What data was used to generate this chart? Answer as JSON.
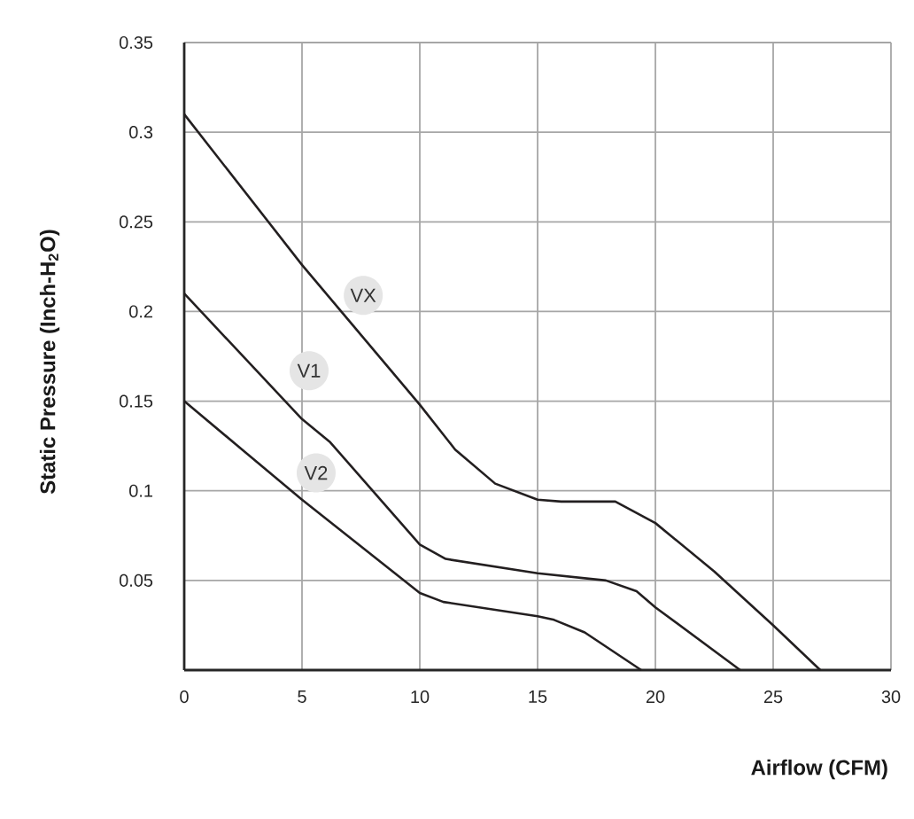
{
  "chart_data": {
    "type": "line",
    "xlabel": "Airflow (CFM)",
    "ylabel": "Static Pressure (Inch-H$_{2}$O)",
    "xlim": [
      0,
      30
    ],
    "xticks": [
      0,
      5,
      10,
      15,
      20,
      25,
      30
    ],
    "ylim": [
      0,
      0.35
    ],
    "yticks": [
      0.05,
      0.1,
      0.15,
      0.2,
      0.25,
      0.3,
      0.35
    ],
    "grid": true,
    "series": [
      {
        "color": "#231f20",
        "x": [
          0,
          5,
          10,
          11.5,
          13.2,
          15,
          16,
          18.3,
          20,
          22.5,
          25,
          27
        ],
        "values": [
          0.31,
          0.226,
          0.148,
          0.123,
          0.104,
          0.095,
          0.094,
          0.094,
          0.082,
          0.055,
          0.025,
          0
        ]
      },
      {
        "color": "#231f20",
        "x": [
          0,
          5,
          6.2,
          10,
          11.1,
          15,
          17.9,
          19.2,
          20,
          23.6
        ],
        "values": [
          0.21,
          0.14,
          0.127,
          0.07,
          0.062,
          0.054,
          0.05,
          0.044,
          0.035,
          0
        ]
      },
      {
        "color": "#231f20",
        "x": [
          0,
          5,
          10,
          11,
          15,
          15.7,
          17,
          19.4
        ],
        "values": [
          0.15,
          0.095,
          0.043,
          0.038,
          0.03,
          0.028,
          0.021,
          0
        ]
      }
    ],
    "annotations": [
      {
        "text": "VX",
        "x": 7.6,
        "y": 0.209
      },
      {
        "text": "V1",
        "x": 5.3,
        "y": 0.167
      },
      {
        "text": "V2",
        "x": 5.6,
        "y": 0.11
      }
    ]
  }
}
